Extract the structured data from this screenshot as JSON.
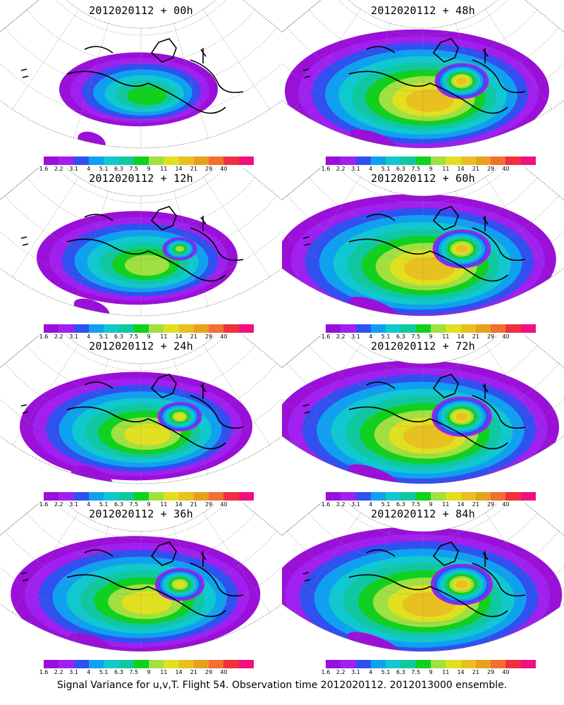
{
  "palette": [
    "#9a10d8",
    "#a020f0",
    "#3050f0",
    "#10a0f0",
    "#10c8d0",
    "#10c8a0",
    "#10d020",
    "#a0e040",
    "#e0e020",
    "#e8c020",
    "#e8a020",
    "#f07030",
    "#f03040",
    "#f01080"
  ],
  "colorbar_labels": [
    "1.6",
    "2.2",
    "3.1",
    "4",
    "5.1",
    "6.3",
    "7.5",
    "9",
    "11",
    "14",
    "21",
    "29",
    "40"
  ],
  "panels": [
    {
      "title": "2012020112 + 00h",
      "hour": 0,
      "extent": 0.35,
      "peak": 0.45
    },
    {
      "title": "2012020112 + 48h",
      "hour": 48,
      "extent": 0.85,
      "peak": 0.8
    },
    {
      "title": "2012020112 + 12h",
      "hour": 12,
      "extent": 0.55,
      "peak": 0.6
    },
    {
      "title": "2012020112 + 60h",
      "hour": 60,
      "extent": 0.92,
      "peak": 0.8
    },
    {
      "title": "2012020112 + 24h",
      "hour": 24,
      "extent": 0.7,
      "peak": 0.7
    },
    {
      "title": "2012020112 + 72h",
      "hour": 72,
      "extent": 0.95,
      "peak": 0.82
    },
    {
      "title": "2012020112 + 36h",
      "hour": 36,
      "extent": 0.78,
      "peak": 0.78
    },
    {
      "title": "2012020112 + 84h",
      "hour": 84,
      "extent": 0.98,
      "peak": 0.85
    }
  ],
  "footer": "Signal Variance for u,v,T. Flight 54. Observation time 2012020112. 2012013000 ensemble."
}
